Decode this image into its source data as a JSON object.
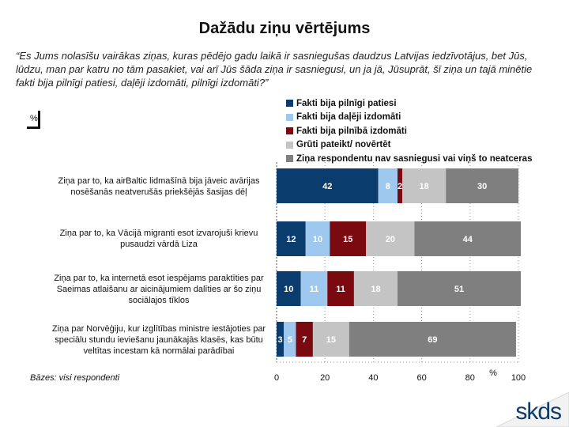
{
  "title": "Dažādu ziņu vērtējums",
  "question": "“Es Jums nolasīšu vairākas ziņas, kuras pēdējo gadu laikā ir sasniegušas daudzus Latvijas iedzīvotājus, bet Jūs, lūdzu, man par katru no tām pasakiet, vai arī Jūs šāda ziņa ir sasniegusi, un ja jā, Jūsuprāt, šī ziņa un tajā minētie fakti bija pilnīgi patiesi, daļēji izdomāti, pilnīgi izdomāti?”",
  "unit_label": "%",
  "base_note": "Bāzes: visi respondenti",
  "logo_text": "skds",
  "chart_data": {
    "type": "bar",
    "orientation": "horizontal",
    "stacked": true,
    "categories": [
      "Ziņa par to, ka airBaltic lidmašīnā bija jāveic avārijas nosēšanās neatverušās priekšējās šasijas dēļ",
      "Ziņa par to, ka Vācijā migranti esot izvarojuši krievu pusaudzi vārdā Liza",
      "Ziņa par to, ka internetā esot iespējams paraktīties par Saeimas atlaišanu ar aicinājumiem dalīties ar šo ziņu sociālajos tīklos",
      "Ziņa par Norvēģiju, kur izglītības ministre iestājoties par speciālu stundu ieviešanu jaunākajās klasēs, kas būtu veltītas incestam kā normālai parādībai"
    ],
    "series": [
      {
        "name": "Fakti bija pilnīgi patiesi",
        "color": "#0b3c6e",
        "values": [
          42,
          12,
          10,
          3
        ]
      },
      {
        "name": "Fakti bija daļēji izdomāti",
        "color": "#9ec8ee",
        "values": [
          8,
          10,
          11,
          5
        ]
      },
      {
        "name": "Fakti bija pilnībā izdomāti",
        "color": "#7a0a10",
        "values": [
          2,
          15,
          11,
          7
        ]
      },
      {
        "name": "Grūti pateikt/ novērtēt",
        "color": "#c4c4c4",
        "values": [
          18,
          20,
          18,
          15
        ]
      },
      {
        "name": "Ziņa respondentu nav sasniegusi vai viņš to neatceras",
        "color": "#7f7f7f",
        "values": [
          30,
          44,
          51,
          69
        ]
      }
    ],
    "xlim": [
      0,
      100
    ],
    "xticks": [
      0,
      20,
      40,
      60,
      80,
      100
    ],
    "xlabel": "%",
    "grid": true,
    "legend_position": "top-right"
  }
}
